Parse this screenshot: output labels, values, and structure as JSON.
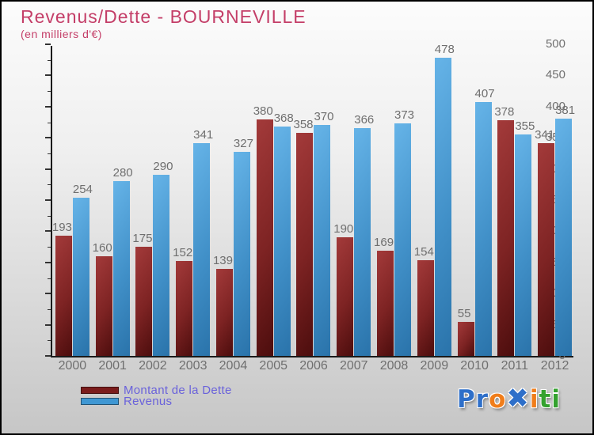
{
  "header": {
    "title": "Revenus/Dette - BOURNEVILLE",
    "subtitle": "(en milliers d'€)",
    "title_color": "#c43e68"
  },
  "chart_data": {
    "type": "bar",
    "title": "Revenus/Dette - BOURNEVILLE",
    "subtitle": "(en milliers d'€)",
    "categories": [
      "2000",
      "2001",
      "2002",
      "2003",
      "2004",
      "2005",
      "2006",
      "2007",
      "2008",
      "2009",
      "2010",
      "2011",
      "2012"
    ],
    "series": [
      {
        "name": "Montant de la Dette",
        "values": [
          193,
          160,
          175,
          152,
          139,
          380,
          358,
          190,
          169,
          154,
          55,
          378,
          341
        ],
        "color_top": "#a33a3a",
        "color_mid": "#7d2323",
        "color_bottom": "#4c0d0d",
        "legend_color": "#7a1c1c"
      },
      {
        "name": "Revenus",
        "values": [
          254,
          280,
          290,
          341,
          327,
          368,
          370,
          366,
          373,
          478,
          407,
          355,
          381
        ],
        "color_top": "#66b4e8",
        "color_mid": "#4190c8",
        "color_bottom": "#2a73aa",
        "legend_color": "#3f97d3"
      }
    ],
    "ylim": [
      0,
      500
    ],
    "ytick_step": 50,
    "yminor_step": 25,
    "grid": false,
    "legend_position": "bottom-left",
    "value_label_color": "#6f6f6f",
    "axis_label_color": "#6f6f6f"
  },
  "legend": {
    "text_color": "#6a62db"
  },
  "logo": {
    "name": "Proxiti",
    "letters": [
      {
        "char": "P",
        "color": "#2e6fc9"
      },
      {
        "char": "r",
        "color": "#2e6fc9"
      },
      {
        "char": "o",
        "color": "#f07d1a"
      },
      {
        "char": "✖",
        "color": "#2e6fc9",
        "class": "logo-x"
      },
      {
        "char": "i",
        "color": "#f07d1a"
      },
      {
        "char": "t",
        "color": "#34a22f"
      },
      {
        "char": "i",
        "color": "#34a22f"
      }
    ]
  }
}
